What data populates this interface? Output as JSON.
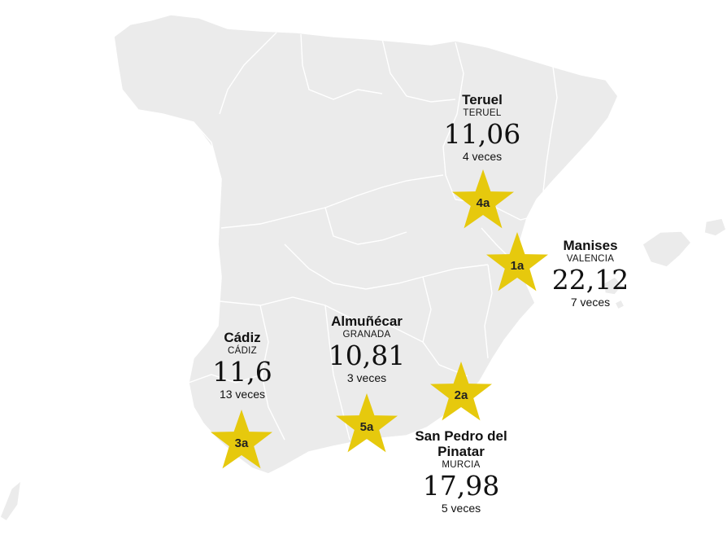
{
  "colors": {
    "land": "#ebebeb",
    "borders": "#ffffff",
    "stars": "#e6c90d",
    "text": "#111111"
  },
  "places": [
    {
      "rank": "1a",
      "city": "Manises",
      "province": "VALENCIA",
      "value": "22,12",
      "times": "7 veces"
    },
    {
      "rank": "2a",
      "city": "San Pedro del Pinatar",
      "province": "MURCIA",
      "value": "17,98",
      "times": "5 veces"
    },
    {
      "rank": "3a",
      "city": "Cádiz",
      "province": "CÁDIZ",
      "value": "11,6",
      "times": "13 veces"
    },
    {
      "rank": "4a",
      "city": "Teruel",
      "province": "TERUEL",
      "value": "11,06",
      "times": "4 veces"
    },
    {
      "rank": "5a",
      "city": "Almuñécar",
      "province": "GRANADA",
      "value": "10,81",
      "times": "3 veces"
    }
  ]
}
